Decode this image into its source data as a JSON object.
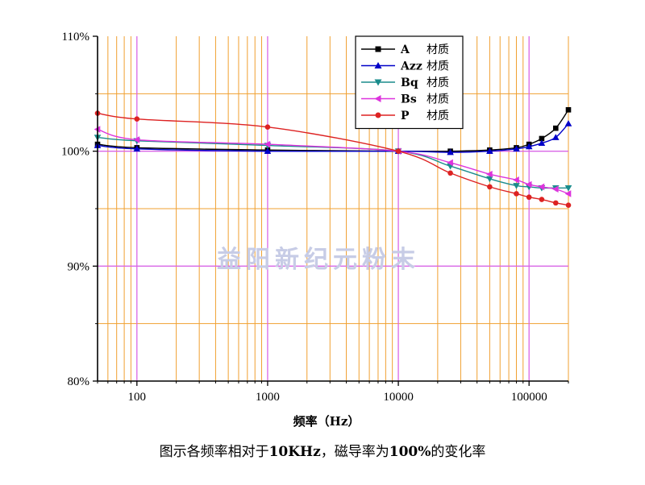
{
  "caption": {
    "before": "图示各频率相对于",
    "ref_freq": "10KHz",
    "middle": "，磁导率为",
    "ref_value": "100%",
    "after": "的变化率"
  },
  "watermark": "益阳新纪元粉末",
  "colors": {
    "major_grid": "#d966e6",
    "minor_grid": "#f0a030",
    "axis": "#000000"
  },
  "chart_data": {
    "type": "line",
    "x_scale": "log",
    "xlim": [
      50,
      200000
    ],
    "ylim": [
      80,
      110
    ],
    "xlabel": "频率（Hz）",
    "ylabel": "",
    "grid": true,
    "legend_position": "top-right",
    "x_ticks": [
      100,
      1000,
      10000,
      100000
    ],
    "x_tick_labels": [
      "100",
      "1000",
      "10000",
      "100000"
    ],
    "y_ticks": [
      80,
      90,
      100,
      110
    ],
    "y_tick_labels": [
      "80%",
      "90%",
      "100%",
      "110%"
    ],
    "y_minor_ticks": [
      85,
      95,
      105
    ],
    "series": [
      {
        "name": "A",
        "suffix": "材质",
        "color": "#000000",
        "marker": "square",
        "x": [
          50,
          100,
          1000,
          10000,
          25000,
          50000,
          80000,
          100000,
          125000,
          160000,
          200000
        ],
        "y": [
          100.6,
          100.3,
          100.1,
          100.0,
          100.0,
          100.1,
          100.3,
          100.6,
          101.1,
          102.0,
          103.6
        ]
      },
      {
        "name": "Azz",
        "suffix": "材质",
        "color": "#0000c8",
        "marker": "triangle-up",
        "x": [
          50,
          100,
          1000,
          10000,
          25000,
          50000,
          80000,
          100000,
          125000,
          160000,
          200000
        ],
        "y": [
          100.5,
          100.2,
          100.0,
          100.0,
          99.9,
          100.0,
          100.2,
          100.4,
          100.7,
          101.2,
          102.4
        ]
      },
      {
        "name": "Bq",
        "suffix": "材质",
        "color": "#1a8c8c",
        "marker": "triangle-down",
        "x": [
          50,
          100,
          1000,
          10000,
          25000,
          50000,
          80000,
          100000,
          125000,
          160000,
          200000
        ],
        "y": [
          101.2,
          100.9,
          100.5,
          100.0,
          98.7,
          97.6,
          97.0,
          96.9,
          96.8,
          96.8,
          96.8
        ]
      },
      {
        "name": "Bs",
        "suffix": "材质",
        "color": "#dd33dd",
        "marker": "triangle-left",
        "x": [
          50,
          100,
          1000,
          10000,
          25000,
          50000,
          80000,
          100000,
          125000,
          160000,
          200000
        ],
        "y": [
          101.9,
          101.0,
          100.6,
          100.0,
          99.0,
          98.0,
          97.5,
          97.1,
          96.9,
          96.7,
          96.3
        ]
      },
      {
        "name": "P",
        "suffix": "材质",
        "color": "#dd2222",
        "marker": "circle",
        "x": [
          50,
          100,
          1000,
          10000,
          25000,
          50000,
          80000,
          100000,
          125000,
          160000,
          200000
        ],
        "y": [
          103.3,
          102.8,
          102.1,
          100.0,
          98.1,
          96.9,
          96.3,
          96.0,
          95.8,
          95.5,
          95.3
        ]
      }
    ]
  }
}
